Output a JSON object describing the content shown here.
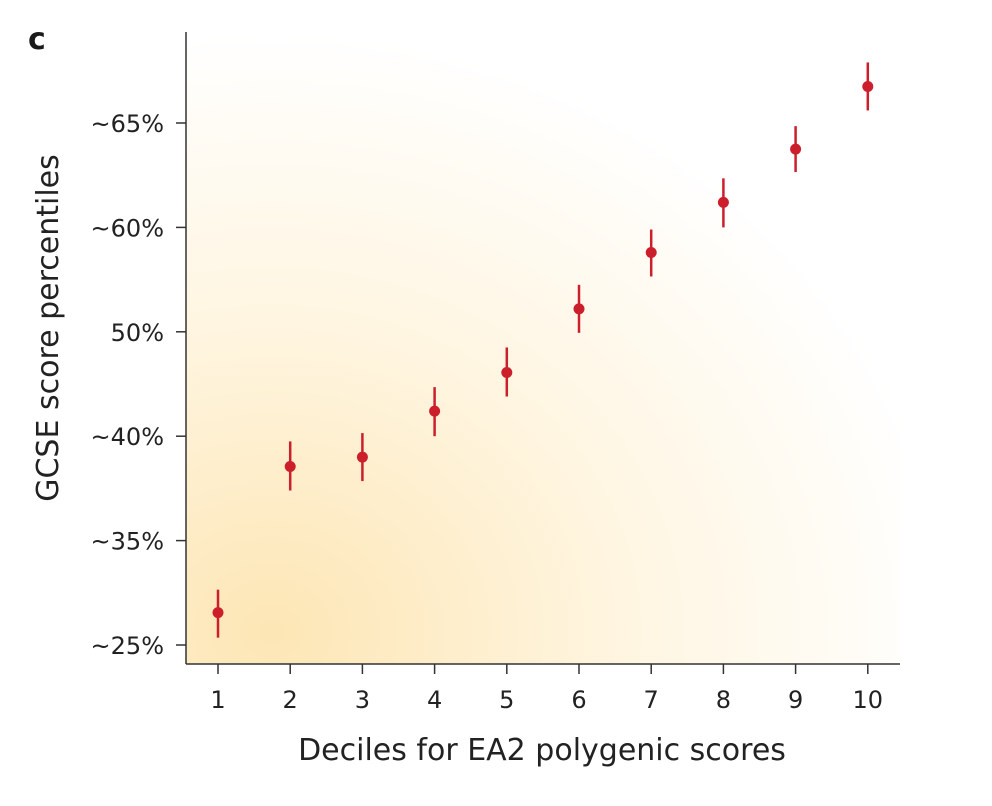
{
  "panel_label": "c",
  "colors": {
    "marker": "#cc1f2c",
    "axis": "#333333",
    "background_glow": "#fde7b8"
  },
  "chart_data": {
    "type": "scatter",
    "title": "",
    "xlabel": "Deciles for EA2 polygenic scores",
    "ylabel": "GCSE score percentiles",
    "x": [
      1,
      2,
      3,
      4,
      5,
      6,
      7,
      8,
      9,
      10
    ],
    "x_tick_labels": [
      "1",
      "2",
      "3",
      "4",
      "5",
      "6",
      "7",
      "8",
      "9",
      "10"
    ],
    "y_ticks": [
      {
        "label": "~25%",
        "position": 0
      },
      {
        "label": "~35%",
        "position": 1
      },
      {
        "label": "~40%",
        "position": 2
      },
      {
        "label": "50%",
        "position": 3
      },
      {
        "label": "~60%",
        "position": 4
      },
      {
        "label": "~65%",
        "position": 5
      }
    ],
    "y_scale_note": "y tick labels are unevenly spaced; values expressed on tick-index scale (0 = ~25%, 5 = ~65%)",
    "series": [
      {
        "values": [
          0.31,
          1.71,
          1.8,
          2.24,
          2.61,
          3.22,
          3.76,
          4.24,
          4.75,
          5.35
        ],
        "error_low": [
          0.07,
          1.48,
          1.57,
          2.0,
          2.38,
          2.99,
          3.53,
          4.0,
          4.53,
          5.12
        ],
        "error_high": [
          0.53,
          1.95,
          2.03,
          2.47,
          2.85,
          3.45,
          3.98,
          4.47,
          4.97,
          5.58
        ]
      }
    ],
    "grid": false,
    "legend": "none"
  }
}
